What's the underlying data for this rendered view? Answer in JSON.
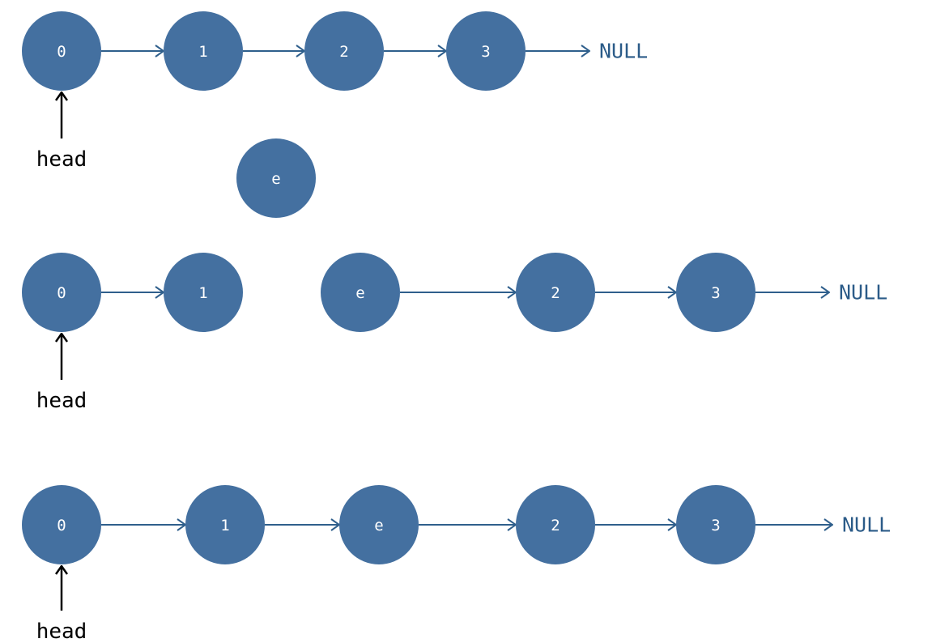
{
  "colors": {
    "node_fill": "#4470a0",
    "arrow": "#2f5f8c",
    "null_text": "#2b5b88",
    "head": "#000000"
  },
  "head_label": "head",
  "null_label": "NULL",
  "rows": [
    {
      "id": "initial-list",
      "nodes": [
        "0",
        "1",
        "2",
        "3"
      ],
      "links": [
        [
          0,
          1
        ],
        [
          1,
          2
        ],
        [
          2,
          3
        ]
      ],
      "ends_with_null": true,
      "head_points_to": 0
    },
    {
      "id": "new-node",
      "nodes": [
        "e"
      ],
      "links": [],
      "ends_with_null": false,
      "head_points_to": null
    },
    {
      "id": "split-list",
      "nodes": [
        "0",
        "1",
        "e",
        "2",
        "3"
      ],
      "links": [
        [
          0,
          1
        ],
        [
          2,
          3
        ],
        [
          3,
          4
        ]
      ],
      "ends_with_null": true,
      "head_points_to": 0
    },
    {
      "id": "final-list",
      "nodes": [
        "0",
        "1",
        "e",
        "2",
        "3"
      ],
      "links": [
        [
          0,
          1
        ],
        [
          1,
          2
        ],
        [
          2,
          3
        ],
        [
          3,
          4
        ]
      ],
      "ends_with_null": true,
      "head_points_to": 0
    }
  ]
}
